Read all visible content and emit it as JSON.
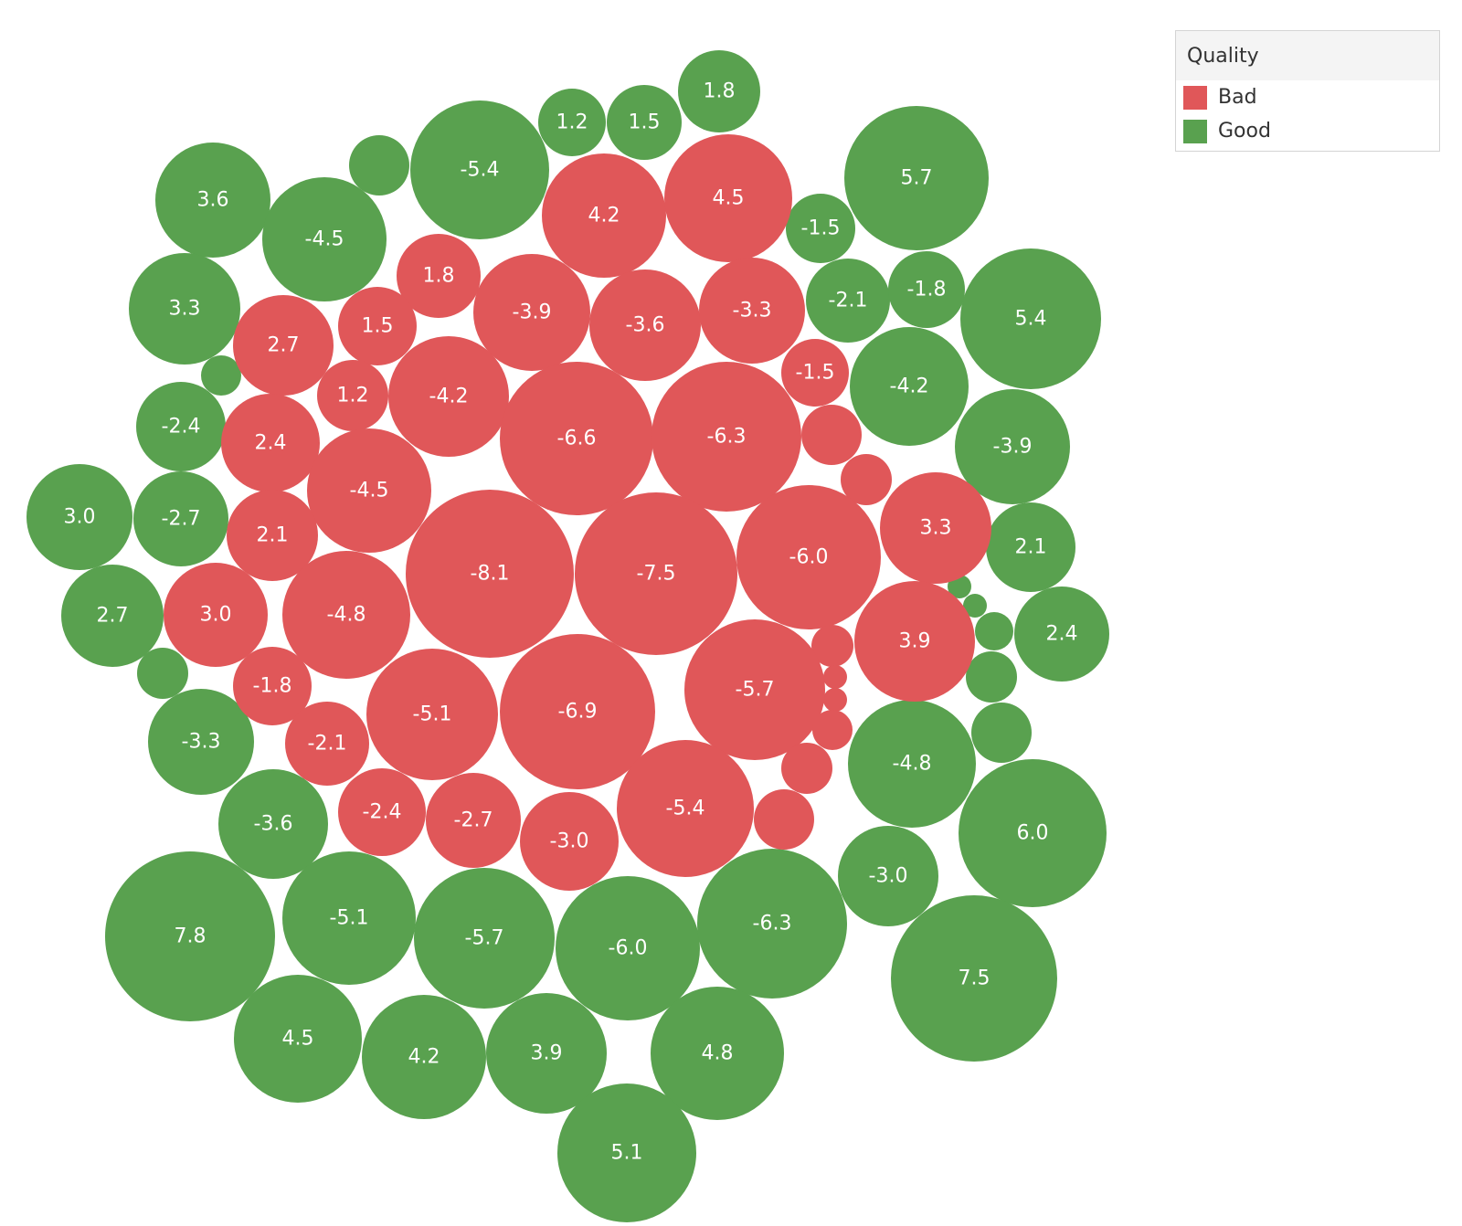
{
  "chart_data": {
    "type": "packed-bubble",
    "title": "",
    "legend": {
      "title": "Quality",
      "placement": "top-right",
      "items": [
        {
          "label": "Bad",
          "color": "#e05759"
        },
        {
          "label": "Good",
          "color": "#59a14f"
        }
      ]
    },
    "bubbles": [
      {
        "label": "1.8",
        "quality": "Good"
      },
      {
        "label": "1.2",
        "quality": "Good"
      },
      {
        "label": "1.5",
        "quality": "Good"
      },
      {
        "label": "-5.4",
        "quality": "Good"
      },
      {
        "label": "",
        "quality": "Good"
      },
      {
        "label": "3.6",
        "quality": "Good"
      },
      {
        "label": "-4.5",
        "quality": "Good"
      },
      {
        "label": "5.7",
        "quality": "Good"
      },
      {
        "label": "-1.5",
        "quality": "Good"
      },
      {
        "label": "3.3",
        "quality": "Good"
      },
      {
        "label": "-2.1",
        "quality": "Good"
      },
      {
        "label": "-1.8",
        "quality": "Good"
      },
      {
        "label": "5.4",
        "quality": "Good"
      },
      {
        "label": "",
        "quality": "Good"
      },
      {
        "label": "-2.4",
        "quality": "Good"
      },
      {
        "label": "-4.2",
        "quality": "Good"
      },
      {
        "label": "-3.9",
        "quality": "Good"
      },
      {
        "label": "3.0",
        "quality": "Good"
      },
      {
        "label": "-2.7",
        "quality": "Good"
      },
      {
        "label": "2.1",
        "quality": "Good"
      },
      {
        "label": "2.7",
        "quality": "Good"
      },
      {
        "label": "2.4",
        "quality": "Good"
      },
      {
        "label": "",
        "quality": "Good"
      },
      {
        "label": "",
        "quality": "Good"
      },
      {
        "label": "",
        "quality": "Good"
      },
      {
        "label": "",
        "quality": "Good"
      },
      {
        "label": "",
        "quality": "Good"
      },
      {
        "label": "-3.3",
        "quality": "Good"
      },
      {
        "label": "",
        "quality": "Good"
      },
      {
        "label": "-4.8",
        "quality": "Good"
      },
      {
        "label": "-3.6",
        "quality": "Good"
      },
      {
        "label": "6.0",
        "quality": "Good"
      },
      {
        "label": "-3.0",
        "quality": "Good"
      },
      {
        "label": "7.8",
        "quality": "Good"
      },
      {
        "label": "-5.1",
        "quality": "Good"
      },
      {
        "label": "-5.7",
        "quality": "Good"
      },
      {
        "label": "-6.0",
        "quality": "Good"
      },
      {
        "label": "-6.3",
        "quality": "Good"
      },
      {
        "label": "7.5",
        "quality": "Good"
      },
      {
        "label": "4.5",
        "quality": "Good"
      },
      {
        "label": "4.2",
        "quality": "Good"
      },
      {
        "label": "3.9",
        "quality": "Good"
      },
      {
        "label": "4.8",
        "quality": "Good"
      },
      {
        "label": "5.1",
        "quality": "Good"
      },
      {
        "label": "4.2",
        "quality": "Bad"
      },
      {
        "label": "4.5",
        "quality": "Bad"
      },
      {
        "label": "1.8",
        "quality": "Bad"
      },
      {
        "label": "2.7",
        "quality": "Bad"
      },
      {
        "label": "1.5",
        "quality": "Bad"
      },
      {
        "label": "-3.9",
        "quality": "Bad"
      },
      {
        "label": "-3.6",
        "quality": "Bad"
      },
      {
        "label": "-3.3",
        "quality": "Bad"
      },
      {
        "label": "-1.5",
        "quality": "Bad"
      },
      {
        "label": "1.2",
        "quality": "Bad"
      },
      {
        "label": "-4.2",
        "quality": "Bad"
      },
      {
        "label": "-6.6",
        "quality": "Bad"
      },
      {
        "label": "-6.3",
        "quality": "Bad"
      },
      {
        "label": "",
        "quality": "Bad"
      },
      {
        "label": "2.4",
        "quality": "Bad"
      },
      {
        "label": "",
        "quality": "Bad"
      },
      {
        "label": "-4.5",
        "quality": "Bad"
      },
      {
        "label": "3.3",
        "quality": "Bad"
      },
      {
        "label": "2.1",
        "quality": "Bad"
      },
      {
        "label": "-8.1",
        "quality": "Bad"
      },
      {
        "label": "-7.5",
        "quality": "Bad"
      },
      {
        "label": "-6.0",
        "quality": "Bad"
      },
      {
        "label": "3.0",
        "quality": "Bad"
      },
      {
        "label": "-4.8",
        "quality": "Bad"
      },
      {
        "label": "3.9",
        "quality": "Bad"
      },
      {
        "label": "",
        "quality": "Bad"
      },
      {
        "label": "-1.8",
        "quality": "Bad"
      },
      {
        "label": "",
        "quality": "Bad"
      },
      {
        "label": "",
        "quality": "Bad"
      },
      {
        "label": "-5.7",
        "quality": "Bad"
      },
      {
        "label": "-5.1",
        "quality": "Bad"
      },
      {
        "label": "-6.9",
        "quality": "Bad"
      },
      {
        "label": "",
        "quality": "Bad"
      },
      {
        "label": "-2.1",
        "quality": "Bad"
      },
      {
        "label": "",
        "quality": "Bad"
      },
      {
        "label": "-2.4",
        "quality": "Bad"
      },
      {
        "label": "-2.7",
        "quality": "Bad"
      },
      {
        "label": "-3.0",
        "quality": "Bad"
      },
      {
        "label": "-5.4",
        "quality": "Bad"
      },
      {
        "label": "",
        "quality": "Bad"
      }
    ]
  }
}
